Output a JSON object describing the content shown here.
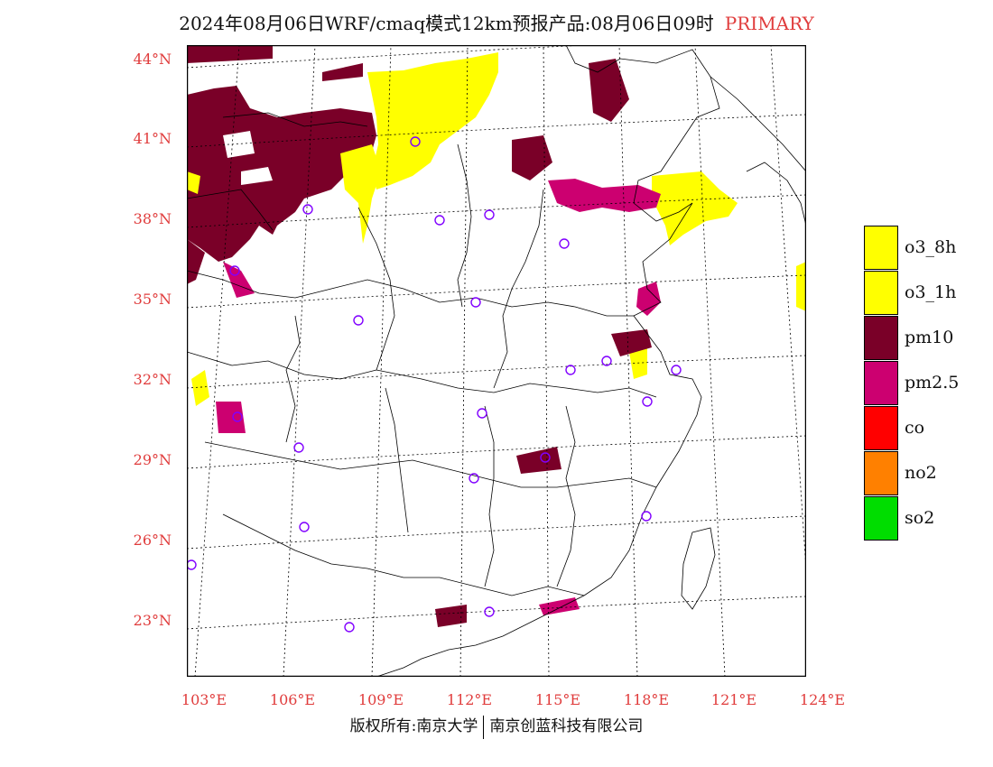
{
  "title": {
    "main": "2024年08月06日WRF/cmaq模式12km预报产品:08月06日09时",
    "tag": "PRIMARY",
    "tag_color": "#e03c3c"
  },
  "axes": {
    "lat_labels": [
      "44°N",
      "41°N",
      "38°N",
      "35°N",
      "32°N",
      "29°N",
      "26°N",
      "23°N"
    ],
    "lon_labels": [
      "103°E",
      "106°E",
      "109°E",
      "112°E",
      "115°E",
      "118°E",
      "121°E",
      "124°E"
    ],
    "label_color": "#e03c3c"
  },
  "legend": {
    "items": [
      {
        "label": "o3_8h",
        "color": "#ffff00"
      },
      {
        "label": "o3_1h",
        "color": "#ffff00"
      },
      {
        "label": "pm10",
        "color": "#7a0028"
      },
      {
        "label": "pm2.5",
        "color": "#cc0070"
      },
      {
        "label": "co",
        "color": "#ff0000"
      },
      {
        "label": "no2",
        "color": "#ff8000"
      },
      {
        "label": "so2",
        "color": "#00dd00"
      }
    ]
  },
  "footer": {
    "left": "版权所有:南京大学",
    "right": "南京创蓝科技有限公司"
  },
  "map": {
    "lat_range": [
      20.5,
      44.5
    ],
    "lon_range": [
      103.0,
      124.0
    ],
    "station_color": "#8000ff",
    "pollution_color_keys": {
      "pm10": "#7a0028",
      "pm25": "#cc0070",
      "o3": "#ffff00"
    }
  }
}
